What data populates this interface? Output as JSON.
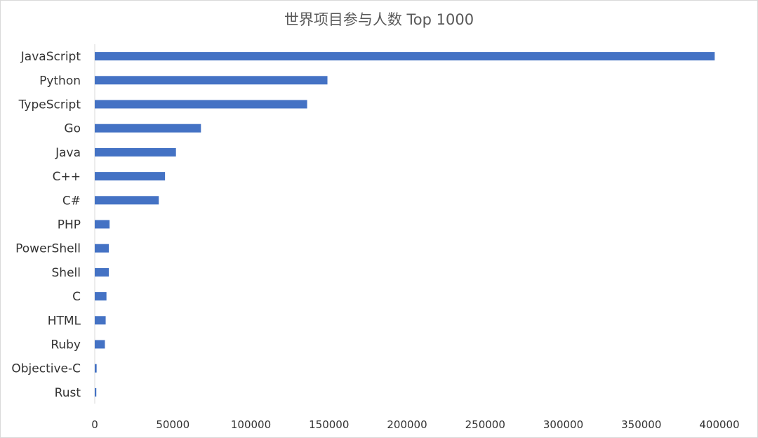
{
  "chart_data": {
    "type": "bar",
    "orientation": "horizontal",
    "title": "世界项目参与人数 Top 1000",
    "categories": [
      "JavaScript",
      "Python",
      "TypeScript",
      "Go",
      "Java",
      "C++",
      "C#",
      "PHP",
      "PowerShell",
      "Shell",
      "C",
      "HTML",
      "Ruby",
      "Objective-C",
      "Rust"
    ],
    "values": [
      397000,
      149000,
      136000,
      68000,
      52000,
      45000,
      41000,
      9500,
      9000,
      9000,
      7500,
      7000,
      6500,
      1200,
      1000
    ],
    "xticks": [
      "0",
      "50000",
      "100000",
      "150000",
      "200000",
      "250000",
      "300000",
      "350000",
      "400000"
    ],
    "xlim": [
      0,
      400000
    ],
    "xlabel": "",
    "ylabel": "",
    "grid": false,
    "legend": "none",
    "bar_color": "#4472c4"
  }
}
